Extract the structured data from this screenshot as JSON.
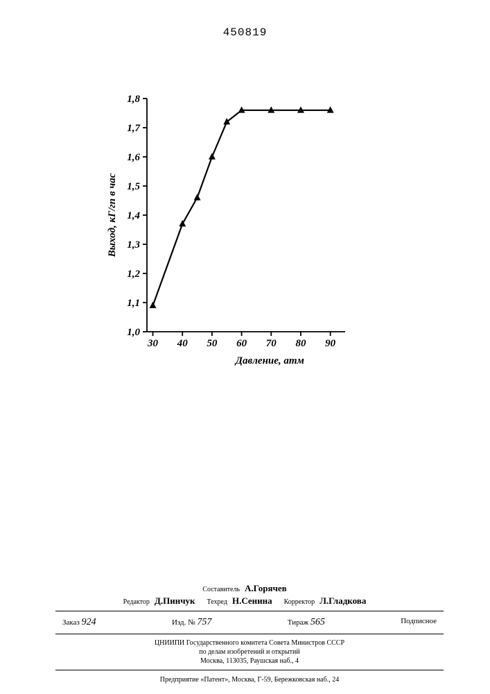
{
  "page_number": "450819",
  "chart": {
    "type": "line",
    "x": [
      30,
      40,
      45,
      50,
      55,
      60,
      70,
      80,
      90
    ],
    "y": [
      1.09,
      1.37,
      1.46,
      1.6,
      1.72,
      1.76,
      1.76,
      1.76,
      1.76
    ],
    "marker": "triangle",
    "marker_size": 9,
    "marker_color": "#000000",
    "line_color": "#000000",
    "line_width": 2.2,
    "xlim": [
      28,
      95
    ],
    "ylim": [
      1.0,
      1.8
    ],
    "xticks": [
      30,
      40,
      50,
      60,
      70,
      80,
      90
    ],
    "yticks": [
      1.0,
      1.1,
      1.2,
      1.3,
      1.4,
      1.5,
      1.6,
      1.7,
      1.8
    ],
    "ytick_labels": [
      "1,0",
      "1,1",
      "1,2",
      "1,3",
      "1,4",
      "1,5",
      "1,6",
      "1,7",
      "1,8"
    ],
    "xtick_labels": [
      "30",
      "40",
      "50",
      "60",
      "70",
      "80",
      "90"
    ],
    "xlabel": "Давление, атм",
    "ylabel": "Выход, кГ/гп в час",
    "axis_color": "#000000",
    "axis_width": 1.8,
    "tick_length": 6,
    "label_fontsize": 15,
    "tick_fontsize": 15,
    "background_color": "#ffffff"
  },
  "credits": {
    "compiler_label": "Составитель",
    "compiler": "А.Горячев",
    "editor_label": "Редактор",
    "editor": "Д.Пинчук",
    "techred_label": "Техред",
    "techred": "Н.Сенина",
    "corrector_label": "Корректор",
    "corrector": "Л.Гладкова"
  },
  "order": {
    "zakaz_label": "Заказ",
    "zakaz": "924",
    "izd_label": "Изд. №",
    "izd": "757",
    "tirazh_label": "Тираж",
    "tirazh": "565",
    "podpisnoe": "Подписное"
  },
  "org": {
    "line1": "ЦНИИПИ Государственного комитета Совета Министров СССР",
    "line2": "по делам изобретений и открытий",
    "line3": "Москва, 113035, Раушская наб., 4"
  },
  "print": "Предприятие «Патент», Москва, Г-59, Бережковская наб., 24"
}
